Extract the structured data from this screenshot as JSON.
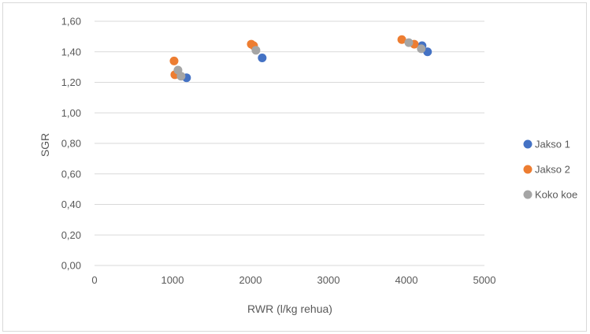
{
  "chart_data": {
    "type": "scatter",
    "title": "",
    "xlabel": "RWR (l/kg rehua)",
    "ylabel": "SGR",
    "xlim": [
      0,
      5000
    ],
    "ylim": [
      0,
      1.6
    ],
    "x_ticks": [
      "0",
      "1000",
      "2000",
      "3000",
      "4000",
      "5000"
    ],
    "y_ticks": [
      "0,00",
      "0,20",
      "0,40",
      "0,60",
      "0,80",
      "1,00",
      "1,20",
      "1,40",
      "1,60"
    ],
    "grid": "horizontal",
    "legend_position": "right",
    "series": [
      {
        "name": "Jakso 1",
        "color": "#4472c4",
        "points": [
          {
            "x": 1180,
            "y": 1.23
          },
          {
            "x": 2150,
            "y": 1.36
          },
          {
            "x": 4200,
            "y": 1.44
          },
          {
            "x": 4270,
            "y": 1.4
          }
        ]
      },
      {
        "name": "Jakso 2",
        "color": "#ed7d31",
        "points": [
          {
            "x": 1020,
            "y": 1.34
          },
          {
            "x": 1030,
            "y": 1.25
          },
          {
            "x": 2010,
            "y": 1.45
          },
          {
            "x": 2040,
            "y": 1.44
          },
          {
            "x": 3940,
            "y": 1.48
          },
          {
            "x": 4100,
            "y": 1.45
          }
        ]
      },
      {
        "name": "Koko koe",
        "color": "#a5a5a5",
        "points": [
          {
            "x": 1070,
            "y": 1.28
          },
          {
            "x": 1110,
            "y": 1.24
          },
          {
            "x": 2070,
            "y": 1.41
          },
          {
            "x": 4030,
            "y": 1.46
          },
          {
            "x": 4190,
            "y": 1.42
          }
        ]
      }
    ]
  }
}
